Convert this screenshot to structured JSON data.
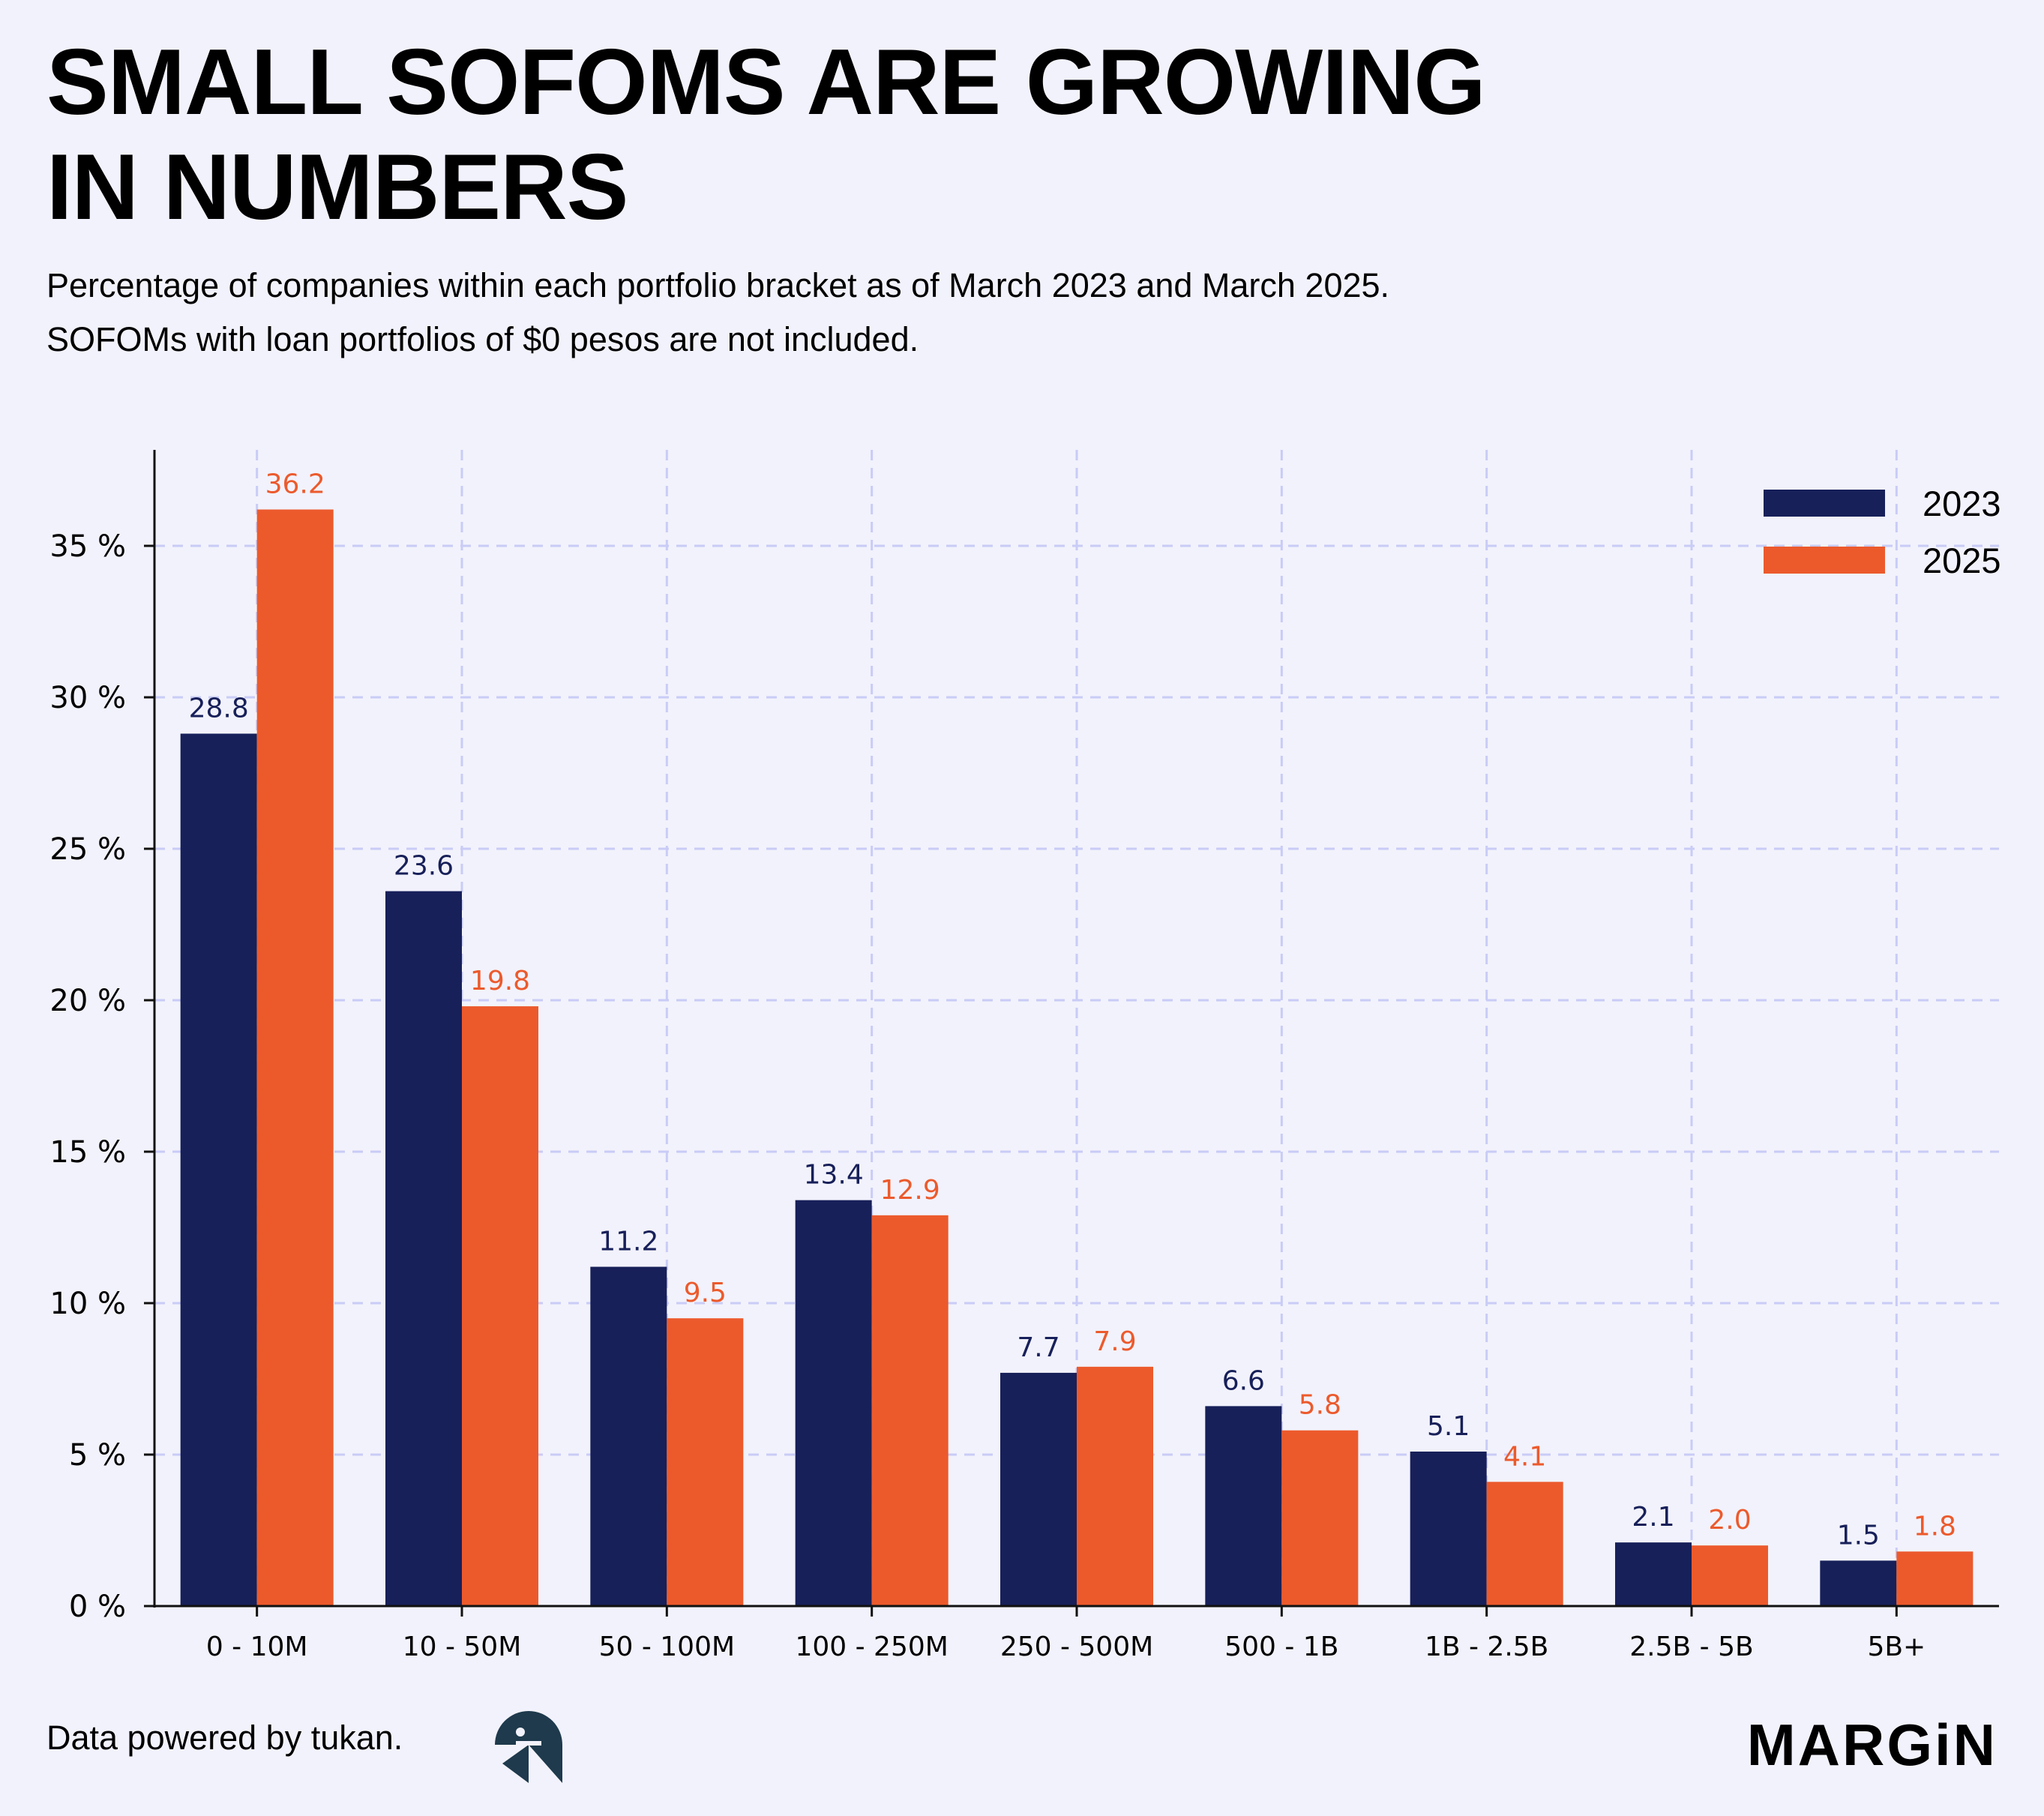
{
  "title_line1": "SMALL SOFOMS ARE GROWING",
  "title_line2": "IN NUMBERS",
  "subtitle_line1": "Percentage of companies within each portfolio bracket as of March 2023 and March 2025.",
  "subtitle_line2": "SOFOMs with loan portfolios of $0 pesos are not included.",
  "footer": {
    "source": "Data powered by tukan.",
    "brand": "MARGiN"
  },
  "colors": {
    "2023": "#172059",
    "2025": "#EC5A2C",
    "grid": "#C9CCF6",
    "axis": "#111111"
  },
  "chart_data": {
    "type": "bar",
    "categories": [
      "0 - 10M",
      "10 - 50M",
      "50 - 100M",
      "100 - 250M",
      "250 - 500M",
      "500 - 1B",
      "1B - 2.5B",
      "2.5B - 5B",
      "5B+"
    ],
    "series": [
      {
        "name": "2023",
        "values": [
          28.8,
          23.6,
          11.2,
          13.4,
          7.7,
          6.6,
          5.1,
          2.1,
          1.5
        ],
        "labels": [
          "28.8",
          "23.6",
          "11.2",
          "13.4",
          "7.7",
          "6.6",
          "5.1",
          "2.1",
          "1.5"
        ]
      },
      {
        "name": "2025",
        "values": [
          36.2,
          19.8,
          9.5,
          12.9,
          7.9,
          5.8,
          4.1,
          2.0,
          1.8
        ],
        "labels": [
          "36.2",
          "19.8",
          "9.5",
          "12.9",
          "7.9",
          "5.8",
          "4.1",
          "2.0",
          "1.8"
        ]
      }
    ],
    "ylim": [
      0,
      38
    ],
    "yticks": [
      0,
      5,
      10,
      15,
      20,
      25,
      30,
      35
    ],
    "ytick_labels": [
      "0 %",
      "5 %",
      "10 %",
      "15 %",
      "20 %",
      "25 %",
      "30 %",
      "35 %"
    ],
    "grid": true,
    "legend_position": "top-right"
  }
}
